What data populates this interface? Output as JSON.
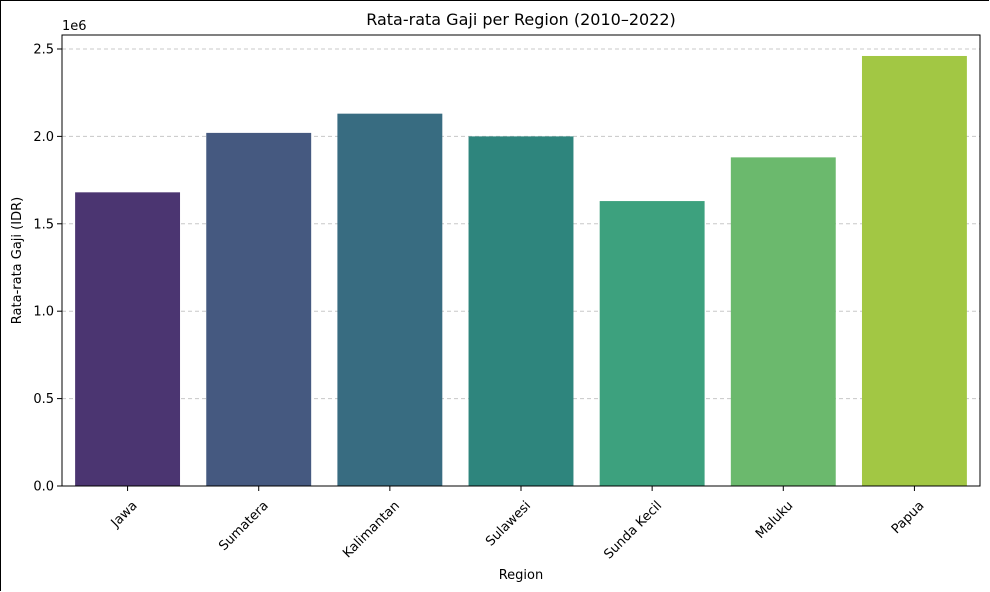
{
  "chart_data": {
    "type": "bar",
    "title": "Rata-rata Gaji per Region (2010–2022)",
    "xlabel": "Region",
    "ylabel": "Rata-rata Gaji (IDR)",
    "y_offset_label": "1e6",
    "categories": [
      "Jawa",
      "Sumatera",
      "Kalimantan",
      "Sulawesi",
      "Sunda Kecil",
      "Maluku",
      "Papua"
    ],
    "values": [
      1680000,
      2020000,
      2130000,
      2000000,
      1630000,
      1880000,
      2460000
    ],
    "colors": [
      "#4b3571",
      "#455980",
      "#386c81",
      "#2e857d",
      "#3da17e",
      "#6bb96d",
      "#a2c744"
    ],
    "yticks": [
      0.0,
      0.5,
      1.0,
      1.5,
      2.0,
      2.5
    ],
    "ytick_labels": [
      "0.0",
      "0.5",
      "1.0",
      "1.5",
      "2.0",
      "2.5"
    ],
    "ylim": [
      0,
      2580000
    ],
    "grid": "y-dashed",
    "legend": "none"
  }
}
